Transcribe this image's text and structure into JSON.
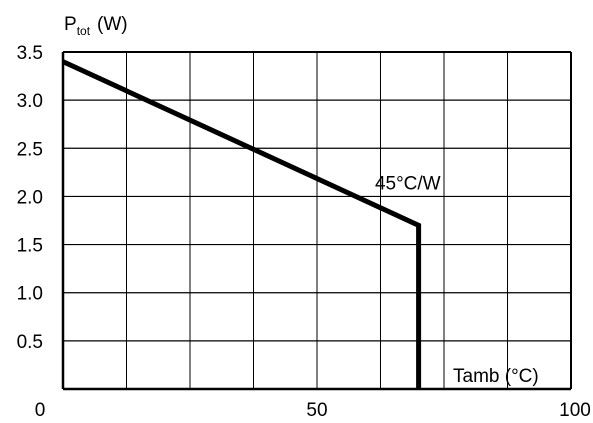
{
  "chart_data": {
    "type": "line",
    "title": "",
    "ylabel": {
      "main": "P",
      "sub": "tot",
      "unit": "(W)"
    },
    "xlabel": "Tamb (°C)",
    "xlim": [
      0,
      100
    ],
    "ylim": [
      0,
      3.5
    ],
    "x_tick_labels": [
      {
        "value": 0,
        "label": "0"
      },
      {
        "value": 50,
        "label": "50"
      },
      {
        "value": 100,
        "label": "100"
      }
    ],
    "y_tick_labels": [
      {
        "value": 0.5,
        "label": "0.5"
      },
      {
        "value": 1.0,
        "label": "1.0"
      },
      {
        "value": 1.5,
        "label": "1.5"
      },
      {
        "value": 2.0,
        "label": "2.0"
      },
      {
        "value": 2.5,
        "label": "2.5"
      },
      {
        "value": 3.0,
        "label": "3.0"
      },
      {
        "value": 3.5,
        "label": "3.5"
      }
    ],
    "grid": true,
    "x_grid_step": 12.5,
    "y_grid_step": 0.5,
    "series": [
      {
        "x": [
          0,
          70,
          70
        ],
        "y": [
          3.4,
          1.7,
          0
        ]
      }
    ],
    "annotations": [
      {
        "text": "45°C/W",
        "x": 62,
        "y": 2.0
      }
    ],
    "colors": {
      "line": "#000000",
      "grid": "#000000",
      "background": "#ffffff"
    }
  }
}
